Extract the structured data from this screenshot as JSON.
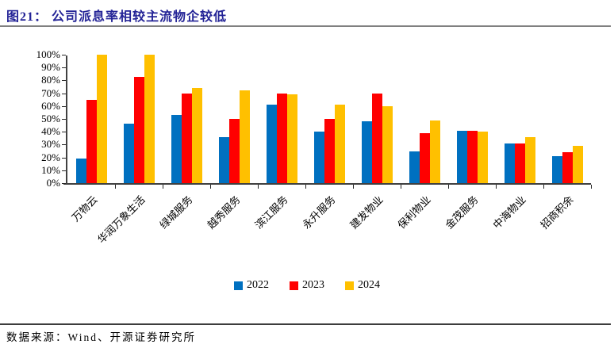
{
  "header": {
    "title": "图21： 公司派息率相较主流物企较低"
  },
  "chart_data": {
    "type": "bar",
    "title": "公司派息率相较主流物企较低",
    "categories": [
      "万物云",
      "华润万象生活",
      "绿城服务",
      "越秀服务",
      "滨江服务",
      "永升服务",
      "建发物业",
      "保利物业",
      "金茂服务",
      "中海物业",
      "招商积余"
    ],
    "series": [
      {
        "name": "2022",
        "color": "#0070C0",
        "values": [
          19,
          46,
          53,
          36,
          61,
          40,
          48,
          25,
          41,
          31,
          21
        ]
      },
      {
        "name": "2023",
        "color": "#FF0000",
        "values": [
          65,
          83,
          70,
          50,
          70,
          50,
          70,
          39,
          41,
          31,
          24
        ]
      },
      {
        "name": "2024",
        "color": "#FFC000",
        "values": [
          100,
          100,
          74,
          72,
          69,
          61,
          60,
          49,
          40,
          36,
          29
        ]
      }
    ],
    "xlabel": "",
    "ylabel": "",
    "ylim": [
      0,
      100
    ],
    "yticks": [
      "0%",
      "10%",
      "20%",
      "30%",
      "40%",
      "50%",
      "60%",
      "70%",
      "80%",
      "90%",
      "100%"
    ],
    "grid": false,
    "legend_position": "bottom"
  },
  "footer": {
    "source": "数据来源：Wind、开源证券研究所"
  }
}
